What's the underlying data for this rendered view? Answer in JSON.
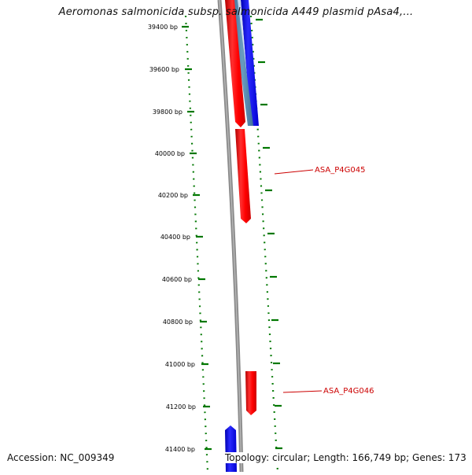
{
  "header": {
    "title": "Aeromonas salmonicida subsp. salmonicida A449 plasmid pAsa4,..."
  },
  "footer": {
    "accession": "Accession: NC_009349",
    "summary": "Topology: circular; Length: 166,749 bp; Genes: 173"
  },
  "ruler": {
    "ticks": [
      {
        "label": "39400 bp"
      },
      {
        "label": "39600 bp"
      },
      {
        "label": "39800 bp"
      },
      {
        "label": "40000 bp"
      },
      {
        "label": "40200 bp"
      },
      {
        "label": "40400 bp"
      },
      {
        "label": "40600 bp"
      },
      {
        "label": "40800 bp"
      },
      {
        "label": "41000 bp"
      },
      {
        "label": "41200 bp"
      },
      {
        "label": "41400 bp"
      }
    ]
  },
  "gene_labels": [
    {
      "name": "ASA_P4G045"
    },
    {
      "name": "ASA_P4G046"
    }
  ],
  "colors": {
    "forward_gene": "#ff0000",
    "reverse_gene": "#0000ff",
    "backbone": "#808080",
    "ruler": "#007700",
    "label": "#cc0000"
  }
}
